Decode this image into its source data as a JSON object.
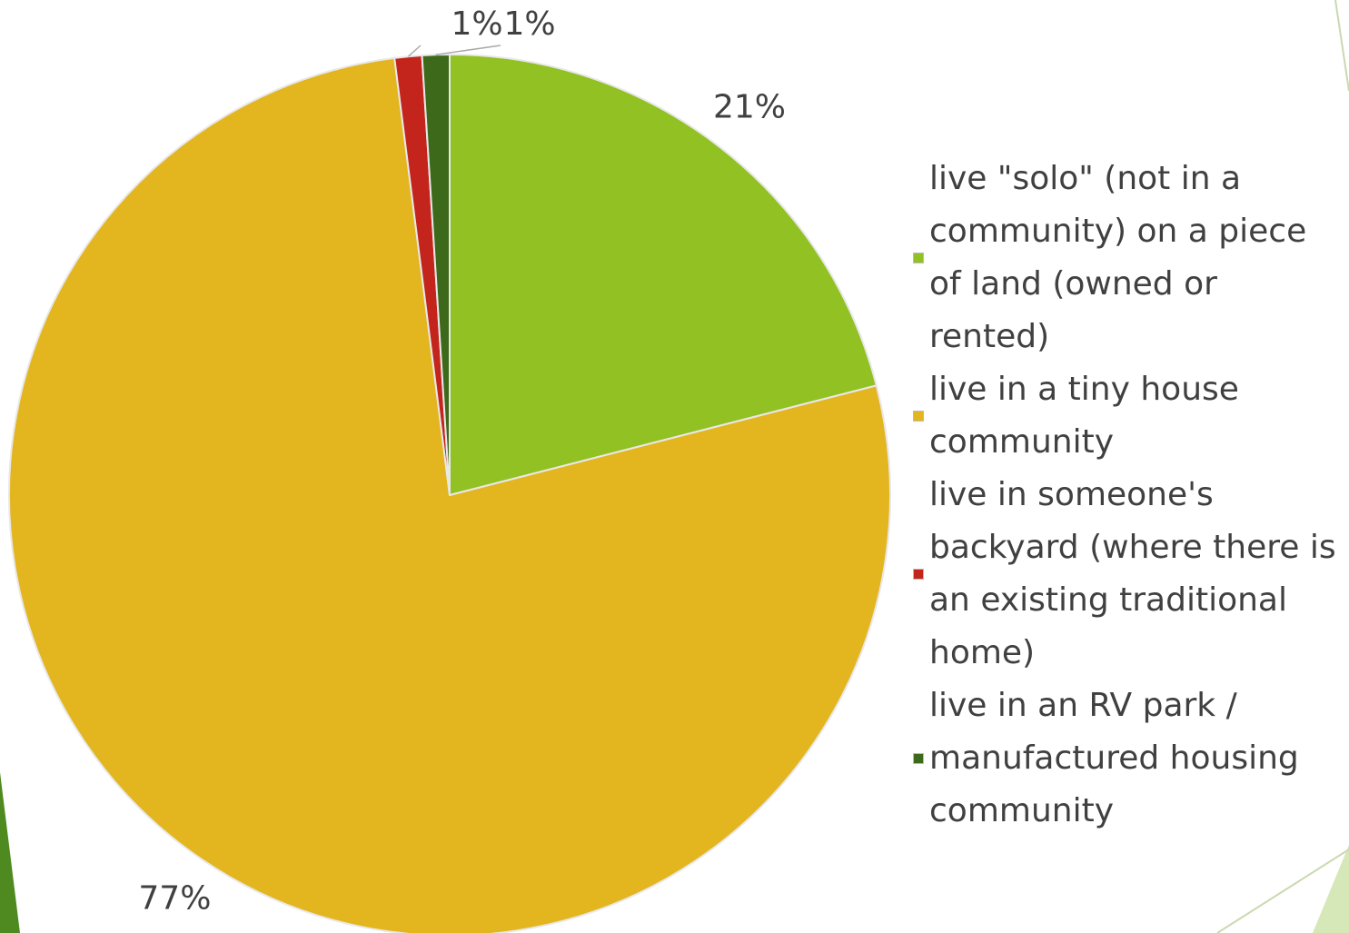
{
  "chart_data": {
    "type": "pie",
    "categories": [
      "live \"solo\" (not in a community) on a piece of land (owned or rented)",
      "live in a tiny house community",
      "live in someone's backyard (where there is an existing traditional home)",
      "live in an RV park / manufactured housing community"
    ],
    "values": [
      21,
      77,
      1,
      1
    ],
    "value_labels": [
      "21%",
      "77%",
      "1%",
      "1%"
    ],
    "colors": [
      "#92c123",
      "#e3b51f",
      "#c3241b",
      "#3d6a1a"
    ],
    "legend": "right"
  }
}
